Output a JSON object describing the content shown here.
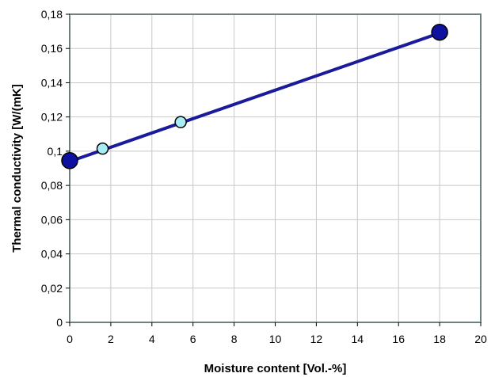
{
  "chart_data": {
    "type": "line",
    "xlabel": "Moisture content [Vol.-%]",
    "ylabel": "Thermal conductivity [W/(mK]",
    "xlim": [
      0,
      20
    ],
    "ylim": [
      0,
      0.18
    ],
    "x_ticks": [
      "0",
      "2",
      "4",
      "6",
      "8",
      "10",
      "12",
      "14",
      "16",
      "18",
      "20"
    ],
    "y_ticks": [
      "0",
      "0,02",
      "0,04",
      "0,06",
      "0,08",
      "0,1",
      "0,12",
      "0,14",
      "0,16",
      "0,18"
    ],
    "grid": true,
    "fit_line": {
      "x": [
        0,
        18
      ],
      "y": [
        0.094,
        0.169
      ]
    },
    "series": [
      {
        "marker": "large-filled",
        "points": [
          {
            "x": 0,
            "y": 0.0945
          },
          {
            "x": 18,
            "y": 0.1695
          }
        ]
      },
      {
        "marker": "small-open",
        "points": [
          {
            "x": 1.6,
            "y": 0.1015
          },
          {
            "x": 5.4,
            "y": 0.117
          }
        ]
      }
    ],
    "colors": {
      "line": "#1a1a9a",
      "large_marker": "#1010a0",
      "small_marker": "#a8ecf4",
      "grid": "#c8c8c8",
      "frame": "#6f8080"
    }
  }
}
